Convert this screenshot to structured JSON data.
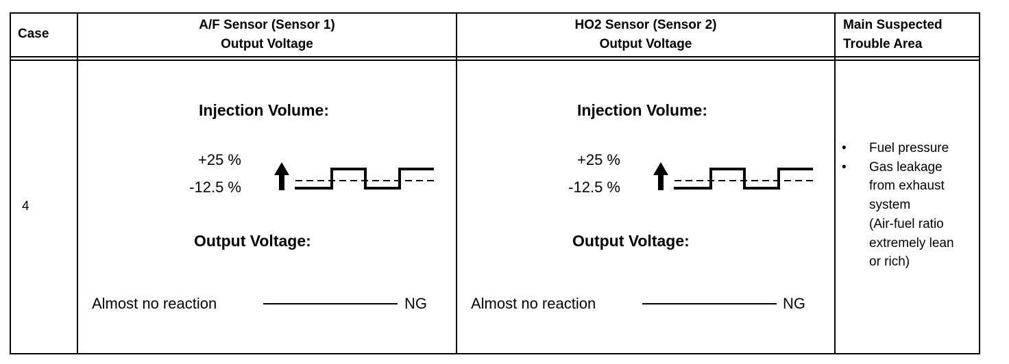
{
  "headers": {
    "case": "Case",
    "af_line1": "A/F Sensor (Sensor 1)",
    "af_line2": "Output Voltage",
    "ho2_line1": "HO2 Sensor (Sensor 2)",
    "ho2_line2": "Output Voltage",
    "area_line1": "Main Suspected",
    "area_line2": "Trouble Area"
  },
  "row": {
    "case": "4",
    "af": {
      "injection_title": "Injection Volume:",
      "plus_label": "+25 %",
      "minus_label": "-12.5 %",
      "output_title": "Output Voltage:",
      "reaction": "Almost no reaction",
      "result": "NG"
    },
    "ho2": {
      "injection_title": "Injection Volume:",
      "plus_label": "+25 %",
      "minus_label": "-12.5 %",
      "output_title": "Output Voltage:",
      "reaction": "Almost no reaction",
      "result": "NG"
    },
    "trouble_areas": [
      {
        "bullet": "•",
        "lines": [
          "Fuel pressure"
        ]
      },
      {
        "bullet": "•",
        "lines": [
          "Gas leakage",
          "from exhaust",
          "system",
          "(Air-fuel ratio",
          "extremely lean",
          "or rich)"
        ]
      }
    ]
  }
}
